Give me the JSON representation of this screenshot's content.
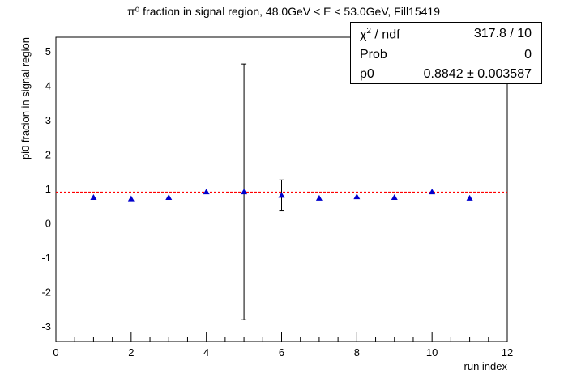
{
  "chart_data": {
    "type": "scatter",
    "title": "π⁰ fraction in signal region, 48.0GeV < E < 53.0GeV, Fill15419",
    "xlabel": "run index",
    "ylabel": "pi0 fracion in signal region",
    "xlim": [
      0,
      12
    ],
    "ylim": [
      -3.45,
      5.4
    ],
    "x_ticks": [
      0,
      2,
      4,
      6,
      8,
      10,
      12
    ],
    "y_ticks": [
      -3,
      -2,
      -1,
      0,
      1,
      2,
      3,
      4,
      5
    ],
    "grid": false,
    "series": [
      {
        "marker": "triangle",
        "color": "#0000cc",
        "x": [
          1,
          2,
          3,
          4,
          5,
          6,
          7,
          8,
          9,
          10,
          11
        ],
        "y": [
          0.74,
          0.7,
          0.74,
          0.9,
          0.9,
          0.8,
          0.72,
          0.76,
          0.74,
          0.9,
          0.72
        ],
        "y_err": [
          0.01,
          0.01,
          0.01,
          0.01,
          3.72,
          0.45,
          0.01,
          0.01,
          0.01,
          0.01,
          0.01
        ]
      }
    ],
    "fit": {
      "type": "constant",
      "value": 0.8842,
      "color": "#ff0000",
      "style": "dotted"
    },
    "stats": [
      {
        "key_base": "χ",
        "key_sup": "2",
        "key_rest": " / ndf",
        "value": "317.8 / 10"
      },
      {
        "key_base": "Prob",
        "key_sup": "",
        "key_rest": "",
        "value": "0"
      },
      {
        "key_base": "p0",
        "key_sup": "",
        "key_rest": "",
        "value": "0.8842 ± 0.003587"
      }
    ]
  }
}
